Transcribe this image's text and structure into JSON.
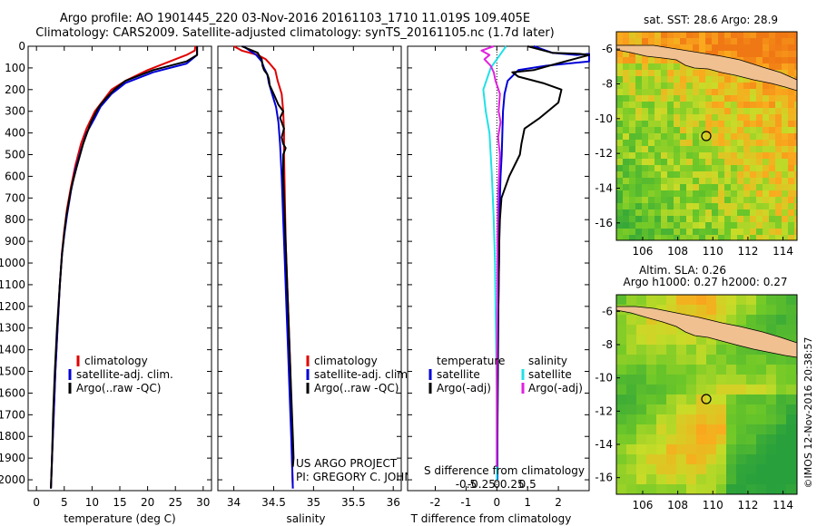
{
  "header": {
    "line1": "Argo profile: AO 1901445_220 03-Nov-2016 20161103_1710 11.019S 109.405E",
    "line2": "Climatology: CARS2009. Satellite-adjusted climatology: synTS_20161105.nc (1.7d later)"
  },
  "sst_map": {
    "title": "sat. SST: 28.6 Argo: 28.9",
    "xticks": [
      "106",
      "108",
      "110",
      "112",
      "114"
    ],
    "yticks": [
      "-6",
      "-8",
      "-10",
      "-12",
      "-14",
      "-16"
    ]
  },
  "sla_map": {
    "title1": "Altim. SLA: 0.26",
    "title2": "Argo h1000: 0.27 h2000: 0.27",
    "xticks": [
      "106",
      "108",
      "110",
      "112",
      "114"
    ],
    "yticks": [
      "-6",
      "-8",
      "-10",
      "-12",
      "-14",
      "-16"
    ]
  },
  "credits": {
    "project": "US ARGO PROJECT",
    "pi": "PI: GREGORY C. JOHNSON",
    "stamp": "©IMOS 12-Nov-2016 20:38:57"
  },
  "colors": {
    "climatology": "#e00000",
    "satellite_adj": "#0000d8",
    "argo": "#000000",
    "sal_satellite": "#20e0e8",
    "sal_argo": "#e020e0",
    "land": "#f0c090"
  },
  "chart_data": [
    {
      "type": "line",
      "xlabel": "temperature (deg C)",
      "ylabel": "",
      "xlim": [
        -1.5,
        31.5
      ],
      "ylim": [
        2050,
        0
      ],
      "xticks": [
        "0",
        "5",
        "10",
        "15",
        "20",
        "25",
        "30"
      ],
      "yticks": [
        "0",
        "100",
        "200",
        "300",
        "400",
        "500",
        "600",
        "700",
        "800",
        "900",
        "1000",
        "1100",
        "1200",
        "1300",
        "1400",
        "1500",
        "1600",
        "1700",
        "1800",
        "1900",
        "2000"
      ],
      "legend": [
        "climatology",
        "satellite-adj. clim.",
        "Argo(..raw -QC)"
      ],
      "series": [
        {
          "name": "climatology",
          "color": "#e00000",
          "points": [
            [
              28.6,
              0
            ],
            [
              28.5,
              20
            ],
            [
              27,
              40
            ],
            [
              25,
              60
            ],
            [
              20,
              110
            ],
            [
              16,
              160
            ],
            [
              13.5,
              200
            ],
            [
              12,
              250
            ],
            [
              10.5,
              300
            ],
            [
              9,
              380
            ],
            [
              8,
              450
            ],
            [
              7,
              550
            ],
            [
              6.2,
              650
            ],
            [
              5.5,
              750
            ],
            [
              5,
              850
            ],
            [
              4.6,
              950
            ],
            [
              4.2,
              1100
            ],
            [
              3.8,
              1300
            ],
            [
              3.4,
              1500
            ],
            [
              3.1,
              1700
            ],
            [
              2.8,
              1900
            ],
            [
              2.6,
              2040
            ]
          ]
        },
        {
          "name": "satellite-adj. clim.",
          "color": "#0000d8",
          "points": [
            [
              28.9,
              0
            ],
            [
              28.9,
              40
            ],
            [
              27,
              80
            ],
            [
              21,
              120
            ],
            [
              16,
              170
            ],
            [
              13.5,
              220
            ],
            [
              11.5,
              280
            ],
            [
              10.5,
              330
            ],
            [
              9,
              400
            ],
            [
              8,
              480
            ],
            [
              7,
              570
            ],
            [
              6.2,
              670
            ],
            [
              5.5,
              780
            ],
            [
              5,
              870
            ],
            [
              4.6,
              960
            ],
            [
              4.2,
              1100
            ],
            [
              3.8,
              1300
            ],
            [
              3.4,
              1500
            ],
            [
              3.1,
              1700
            ],
            [
              2.8,
              1900
            ],
            [
              2.6,
              2040
            ]
          ]
        },
        {
          "name": "Argo(..raw -QC)",
          "color": "#000000",
          "points": [
            [
              28.9,
              0
            ],
            [
              28.9,
              40
            ],
            [
              27,
              70
            ],
            [
              21,
              110
            ],
            [
              16,
              160
            ],
            [
              14,
              200
            ],
            [
              12.5,
              240
            ],
            [
              11.5,
              270
            ],
            [
              11,
              290
            ],
            [
              9.8,
              350
            ],
            [
              8.4,
              450
            ],
            [
              7.2,
              560
            ],
            [
              6.3,
              650
            ],
            [
              5.4,
              780
            ],
            [
              5,
              860
            ],
            [
              4.6,
              960
            ],
            [
              4.2,
              1100
            ],
            [
              3.7,
              1300
            ],
            [
              3.3,
              1500
            ],
            [
              3,
              1700
            ],
            [
              2.8,
              1900
            ],
            [
              2.6,
              2040
            ]
          ]
        }
      ]
    },
    {
      "type": "line",
      "xlabel": "salinity",
      "ylabel": "",
      "xlim": [
        33.8,
        36.1
      ],
      "ylim": [
        2050,
        0
      ],
      "xticks": [
        "34",
        "34.5",
        "35",
        "35.5",
        "36"
      ],
      "legend": [
        "climatology",
        "satellite-adj. clim.",
        "Argo(..raw -QC)"
      ],
      "series": [
        {
          "name": "climatology",
          "color": "#e00000",
          "points": [
            [
              34.0,
              0
            ],
            [
              34.1,
              20
            ],
            [
              34.3,
              40
            ],
            [
              34.4,
              60
            ],
            [
              34.45,
              80
            ],
            [
              34.52,
              110
            ],
            [
              34.55,
              160
            ],
            [
              34.6,
              220
            ],
            [
              34.62,
              300
            ],
            [
              34.63,
              400
            ],
            [
              34.63,
              500
            ],
            [
              34.64,
              700
            ],
            [
              34.65,
              900
            ],
            [
              34.67,
              1100
            ],
            [
              34.69,
              1300
            ],
            [
              34.71,
              1500
            ],
            [
              34.72,
              1700
            ],
            [
              34.73,
              1900
            ],
            [
              34.74,
              2040
            ]
          ]
        },
        {
          "name": "satellite-adj. clim.",
          "color": "#0000d8",
          "points": [
            [
              34.12,
              0
            ],
            [
              34.2,
              20
            ],
            [
              34.28,
              40
            ],
            [
              34.35,
              70
            ],
            [
              34.38,
              100
            ],
            [
              34.42,
              130
            ],
            [
              34.44,
              170
            ],
            [
              34.48,
              220
            ],
            [
              34.53,
              280
            ],
            [
              34.56,
              350
            ],
            [
              34.58,
              450
            ],
            [
              34.6,
              600
            ],
            [
              34.62,
              800
            ],
            [
              34.64,
              1000
            ],
            [
              34.66,
              1200
            ],
            [
              34.68,
              1400
            ],
            [
              34.7,
              1600
            ],
            [
              34.72,
              1800
            ],
            [
              34.73,
              1920
            ],
            [
              34.74,
              2040
            ]
          ]
        },
        {
          "name": "Argo(..raw -QC)",
          "color": "#000000",
          "points": [
            [
              34.1,
              0
            ],
            [
              34.2,
              15
            ],
            [
              34.3,
              30
            ],
            [
              34.33,
              50
            ],
            [
              34.35,
              60
            ],
            [
              34.36,
              90
            ],
            [
              34.38,
              110
            ],
            [
              34.42,
              130
            ],
            [
              34.44,
              150
            ],
            [
              34.45,
              180
            ],
            [
              34.5,
              220
            ],
            [
              34.56,
              270
            ],
            [
              34.62,
              300
            ],
            [
              34.58,
              330
            ],
            [
              34.63,
              380
            ],
            [
              34.6,
              420
            ],
            [
              34.62,
              450
            ],
            [
              34.65,
              470
            ],
            [
              34.62,
              500
            ],
            [
              34.62,
              600
            ],
            [
              34.64,
              800
            ],
            [
              34.66,
              1000
            ],
            [
              34.68,
              1200
            ],
            [
              34.7,
              1400
            ],
            [
              34.72,
              1600
            ],
            [
              34.74,
              1800
            ],
            [
              34.75,
              1900
            ],
            [
              34.74,
              1940
            ]
          ]
        }
      ]
    },
    {
      "type": "line",
      "xlabel": "T difference from climatology",
      "ylabel": "",
      "xlim": [
        -2.9,
        3.0
      ],
      "ylim": [
        2050,
        0
      ],
      "xticks": [
        "-2",
        "-1",
        "0",
        "1",
        "2"
      ],
      "top_axis_label": "S difference from climatology",
      "top_xticks": [
        "-0.5",
        "-0.25",
        "0",
        "0.25",
        "0.5"
      ],
      "legend": [
        "temperature",
        "satellite",
        "Argo(-adj)",
        "salinity",
        "satellite",
        "Argo(-adj)"
      ],
      "series": [
        {
          "name": "temperature satellite",
          "color": "#0000d8",
          "points": [
            [
              1.2,
              0
            ],
            [
              1.8,
              30
            ],
            [
              2.6,
              40
            ],
            [
              3,
              35
            ],
            [
              3,
              70
            ],
            [
              1.6,
              90
            ],
            [
              0.7,
              110
            ],
            [
              0.35,
              160
            ],
            [
              0.25,
              220
            ],
            [
              0.2,
              300
            ],
            [
              0.18,
              400
            ],
            [
              0.16,
              500
            ],
            [
              0.12,
              600
            ],
            [
              0.1,
              700
            ],
            [
              0.08,
              800
            ],
            [
              0.07,
              1000
            ],
            [
              0.05,
              1200
            ],
            [
              0.04,
              1400
            ],
            [
              0.03,
              1600
            ],
            [
              0.02,
              1800
            ],
            [
              0.02,
              2000
            ]
          ]
        },
        {
          "name": "temperature Argo(-adj)",
          "color": "#000000",
          "points": [
            [
              1.0,
              0
            ],
            [
              1.8,
              30
            ],
            [
              2.7,
              35
            ],
            [
              3,
              40
            ],
            [
              1.7,
              90
            ],
            [
              1.2,
              110
            ],
            [
              0.5,
              120
            ],
            [
              0.7,
              140
            ],
            [
              1.5,
              170
            ],
            [
              2.1,
              200
            ],
            [
              2.0,
              260
            ],
            [
              1.4,
              330
            ],
            [
              0.9,
              380
            ],
            [
              0.8,
              450
            ],
            [
              0.75,
              500
            ],
            [
              0.4,
              600
            ],
            [
              0.15,
              700
            ],
            [
              0.1,
              800
            ],
            [
              0.08,
              900
            ],
            [
              0.06,
              1100
            ],
            [
              0.04,
              1300
            ],
            [
              0.03,
              1500
            ],
            [
              0.02,
              1700
            ],
            [
              0.01,
              1900
            ],
            [
              0.01,
              1940
            ]
          ]
        },
        {
          "name": "salinity satellite",
          "color": "#20e0e8",
          "points": [
            [
              0.15,
              0
            ],
            [
              0.05,
              40
            ],
            [
              -0.1,
              100
            ],
            [
              -0.22,
              200
            ],
            [
              -0.18,
              300
            ],
            [
              -0.12,
              400
            ],
            [
              -0.08,
              600
            ],
            [
              -0.05,
              800
            ],
            [
              -0.03,
              1000
            ],
            [
              -0.02,
              1200
            ],
            [
              -0.01,
              1400
            ],
            [
              0,
              1600
            ],
            [
              0,
              1800
            ],
            [
              0,
              2000
            ]
          ]
        },
        {
          "name": "salinity Argo(-adj)",
          "color": "#e020e0",
          "points": [
            [
              -0.05,
              0
            ],
            [
              -0.25,
              20
            ],
            [
              -0.12,
              40
            ],
            [
              -0.2,
              60
            ],
            [
              -0.1,
              90
            ],
            [
              -0.05,
              120
            ],
            [
              -0.02,
              160
            ],
            [
              0.05,
              220
            ],
            [
              0.03,
              300
            ],
            [
              0.06,
              350
            ],
            [
              0.02,
              420
            ],
            [
              0.05,
              500
            ],
            [
              0.02,
              700
            ],
            [
              0.01,
              900
            ],
            [
              0.01,
              1200
            ],
            [
              0,
              1500
            ],
            [
              0,
              1800
            ],
            [
              0,
              1940
            ]
          ]
        }
      ]
    }
  ]
}
